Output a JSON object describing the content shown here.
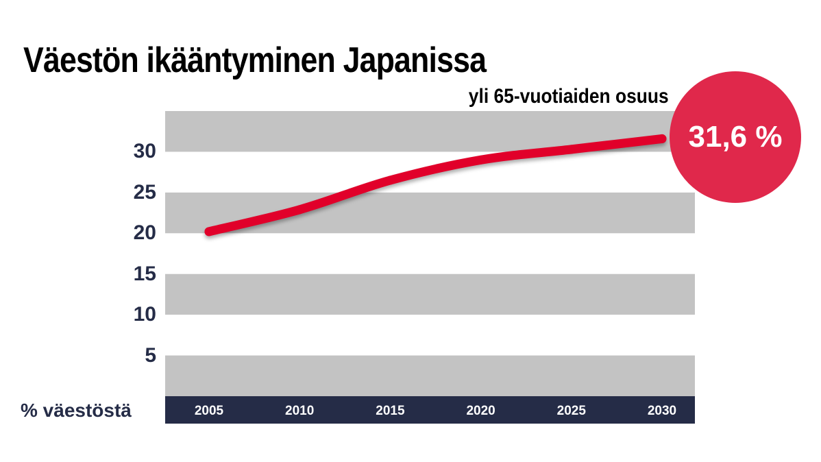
{
  "title": "Väestön ikääntyminen Japanissa",
  "subtitle": "yli 65-vuotiaiden osuus",
  "colors": {
    "band": "#c3c3c3",
    "line": "#e1002a",
    "axis_bar": "#252c47",
    "axis_text": "#252c47",
    "callout": "#e0284b"
  },
  "callout": {
    "text": "31,6 %",
    "value": 31.6
  },
  "chart_data": {
    "type": "line",
    "title": "Väestön ikääntyminen Japanissa",
    "subtitle": "yli 65-vuotiaiden osuus",
    "xlabel": "",
    "ylabel": "% väestöstä",
    "x": [
      2005,
      2010,
      2015,
      2020,
      2025,
      2030
    ],
    "xticks": [
      "2005",
      "2010",
      "2015",
      "2020",
      "2025",
      "2030"
    ],
    "yticks": [
      "5",
      "10",
      "15",
      "20",
      "25",
      "30"
    ],
    "ylim": [
      0,
      35
    ],
    "series": [
      {
        "values": [
          20.2,
          22.9,
          26.5,
          29.0,
          30.3,
          31.6
        ]
      }
    ],
    "grid": "alternating horizontal bands",
    "legend": "none"
  }
}
